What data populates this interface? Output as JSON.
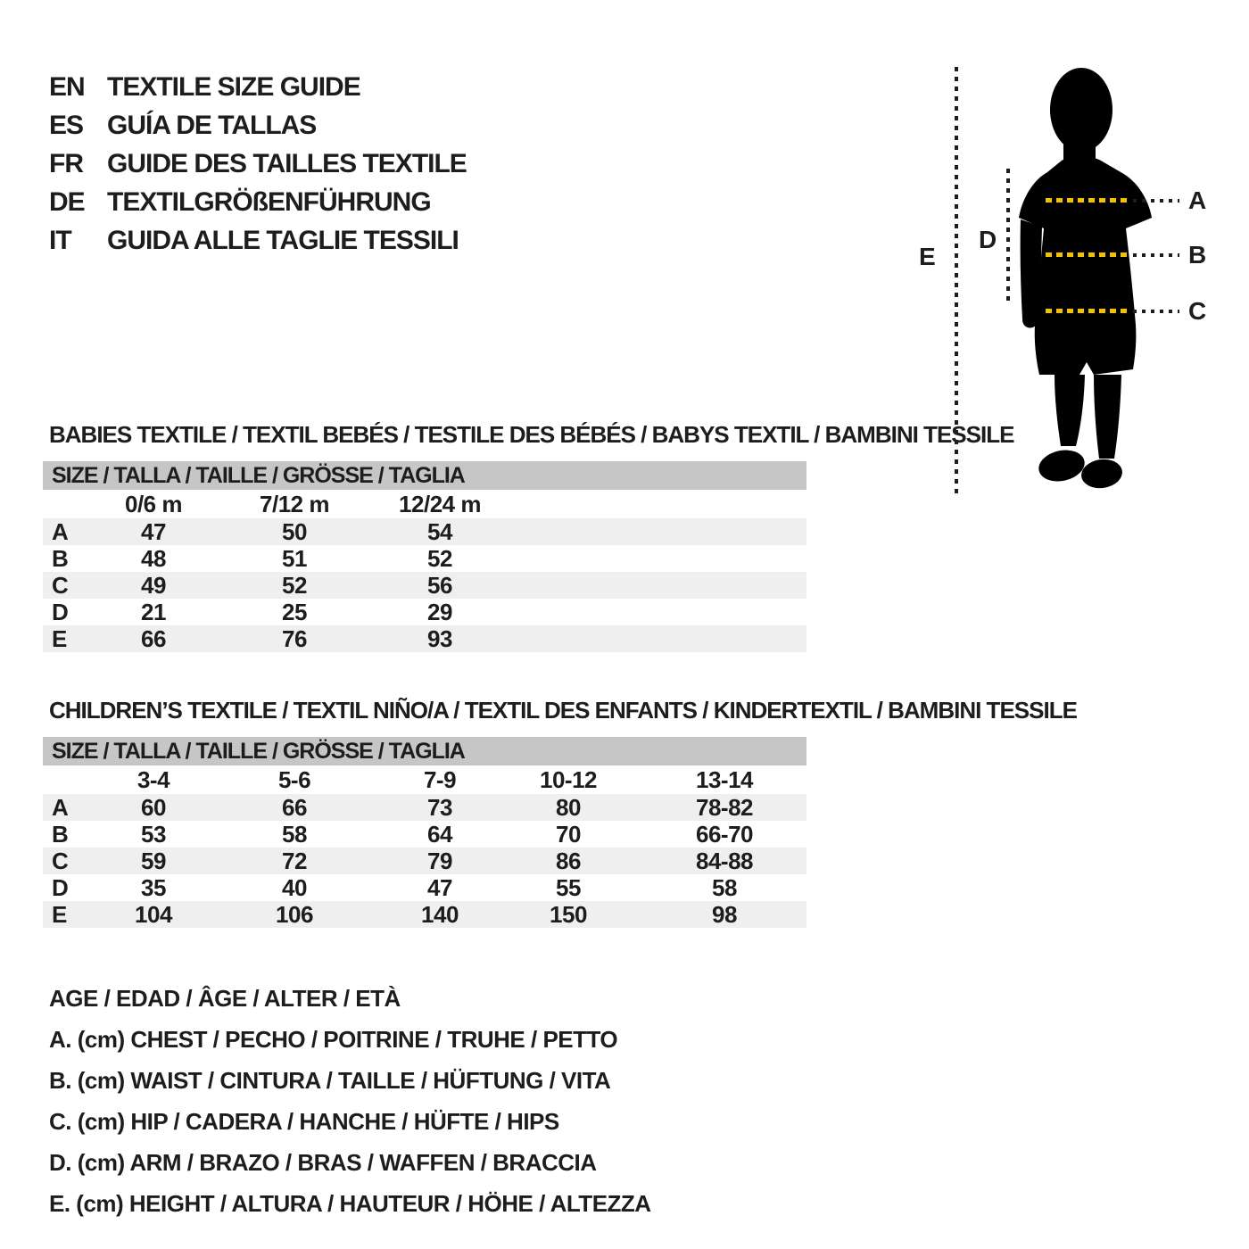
{
  "header": {
    "languages": [
      {
        "code": "EN",
        "title": "TEXTILE SIZE GUIDE"
      },
      {
        "code": "ES",
        "title": "GUÍA DE TALLAS"
      },
      {
        "code": "FR",
        "title": "GUIDE DES TAILLES TEXTILE"
      },
      {
        "code": "DE",
        "title": "TEXTILGRÖßENFÜHRUNG"
      },
      {
        "code": "IT",
        "title": "GUIDA ALLE TAGLIE TESSILI"
      }
    ]
  },
  "figure": {
    "points": {
      "a": "A",
      "b": "B",
      "c": "C",
      "d": "D",
      "e": "E"
    },
    "dash_on_body_color": "#f3c300",
    "dash_off_body_color": "#1d1d1b",
    "silhouette_color": "#000000"
  },
  "babies_table": {
    "title": "BABIES TEXTILE / TEXTIL BEBÉS / TESTILE DES BÉBÉS / BABYS TEXTIL / BAMBINI TESSILE",
    "size_header": "SIZE / TALLA / TAILLE / GRÖSSE / TAGLIA",
    "columns": [
      "0/6 m",
      "7/12 m",
      "12/24 m"
    ],
    "rows": [
      {
        "label": "A",
        "values": [
          "47",
          "50",
          "54"
        ]
      },
      {
        "label": "B",
        "values": [
          "48",
          "51",
          "52"
        ]
      },
      {
        "label": "C",
        "values": [
          "49",
          "52",
          "56"
        ]
      },
      {
        "label": "D",
        "values": [
          "21",
          "25",
          "29"
        ]
      },
      {
        "label": "E",
        "values": [
          "66",
          "76",
          "93"
        ]
      }
    ]
  },
  "children_table": {
    "title": "CHILDREN’S TEXTILE / TEXTIL NIÑO/A / TEXTIL DES ENFANTS / KINDERTEXTIL / BAMBINI TESSILE",
    "size_header": "SIZE / TALLA / TAILLE / GRÖSSE / TAGLIA",
    "columns": [
      "3-4",
      "5-6",
      "7-9",
      "10-12",
      "13-14"
    ],
    "rows": [
      {
        "label": "A",
        "values": [
          "60",
          "66",
          "73",
          "80",
          "78-82"
        ]
      },
      {
        "label": "B",
        "values": [
          "53",
          "58",
          "64",
          "70",
          "66-70"
        ]
      },
      {
        "label": "C",
        "values": [
          "59",
          "72",
          "79",
          "86",
          "84-88"
        ]
      },
      {
        "label": "D",
        "values": [
          "35",
          "40",
          "47",
          "55",
          "58"
        ]
      },
      {
        "label": "E",
        "values": [
          "104",
          "106",
          "140",
          "150",
          "98"
        ]
      }
    ]
  },
  "legend": {
    "age_line": "AGE / EDAD / ÂGE / ALTER / ETÀ",
    "items": [
      "A. (cm) CHEST / PECHO / POITRINE / TRUHE / PETTO",
      "B. (cm) WAIST / CINTURA / TAILLE / HÜFTUNG / VITA",
      "C. (cm) HIP / CADERA / HANCHE / HÜFTE / HIPS",
      "D. (cm) ARM / BRAZO / BRAS / WAFFEN / BRACCIA",
      "E. (cm) HEIGHT / ALTURA / HAUTEUR / HÖHE / ALTEZZA"
    ]
  },
  "colors": {
    "text": "#1d1d1b",
    "table_header_bar": "#c6c6c6",
    "row_stripe": "#efefef",
    "background": "#ffffff"
  }
}
